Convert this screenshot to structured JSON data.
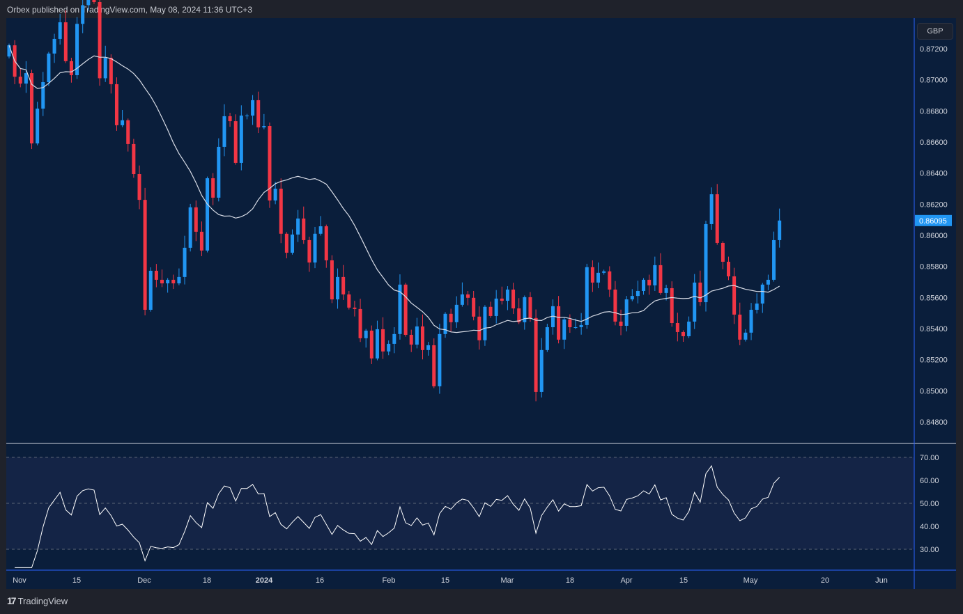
{
  "header": {
    "published": "Orbex published on TradingView.com, May 08, 2024 11:36 UTC+3"
  },
  "footer": {
    "brand": "TradingView"
  },
  "currency_button": "GBP",
  "colors": {
    "up": "#2196f3",
    "down": "#f23645",
    "ma": "#d8dce6",
    "rsi": "#ffffff",
    "background": "#0a1e3b",
    "rsi_band": "#142446"
  },
  "chart_data": [
    {
      "type": "candlestick",
      "title": "Price",
      "price_ticks": [
        "0.87200",
        "0.87000",
        "0.86800",
        "0.86600",
        "0.86400",
        "0.86200",
        "0.86000",
        "0.85800",
        "0.85600",
        "0.85400",
        "0.85200",
        "0.85000",
        "0.84800"
      ],
      "ylim": [
        0.8468,
        0.8752
      ],
      "current_price": "0.86095",
      "first_open": 0.8715,
      "close": [
        0.87222,
        0.8702,
        0.86976,
        0.87043,
        0.86591,
        0.86815,
        0.86985,
        0.87169,
        0.87263,
        0.8737,
        0.8712,
        0.8703,
        0.8736,
        0.8748,
        0.8752,
        0.875,
        0.8701,
        0.87142,
        0.86972,
        0.86708,
        0.8674,
        0.86587,
        0.86394,
        0.86228,
        0.85521,
        0.85772,
        0.85714,
        0.85691,
        0.85714,
        0.85691,
        0.85732,
        0.8592,
        0.8618,
        0.86023,
        0.85902,
        0.86367,
        0.86242,
        0.86569,
        0.86766,
        0.86734,
        0.86466,
        0.8677,
        0.8677,
        0.86869,
        0.86694,
        0.86703,
        0.86224,
        0.863,
        0.8601,
        0.85888,
        0.86005,
        0.86108,
        0.85969,
        0.85825,
        0.8601,
        0.86058,
        0.85839,
        0.85588,
        0.85732,
        0.8562,
        0.85535,
        0.85526,
        0.85338,
        0.85387,
        0.85208,
        0.85396,
        0.85253,
        0.85302,
        0.85365,
        0.85683,
        0.8536,
        0.85297,
        0.85414,
        0.85262,
        0.85293,
        0.85029,
        0.85365,
        0.85495,
        0.85441,
        0.85553,
        0.8562,
        0.85598,
        0.85477,
        0.85325,
        0.8554,
        0.85481,
        0.85593,
        0.85579,
        0.85651,
        0.8553,
        0.85441,
        0.85602,
        0.85468,
        0.84993,
        0.85262,
        0.85409,
        0.85544,
        0.85329,
        0.85459,
        0.85409,
        0.85409,
        0.85423,
        0.85795,
        0.85696,
        0.85759,
        0.85768,
        0.85651,
        0.85445,
        0.85418,
        0.85588,
        0.8561,
        0.85642,
        0.85714,
        0.85678,
        0.85808,
        0.85629,
        0.8566,
        0.85436,
        0.85378,
        0.85351,
        0.85445,
        0.85696,
        0.8557,
        0.86072,
        0.86264,
        0.85951,
        0.8583,
        0.85736,
        0.8549,
        0.85329,
        0.85374,
        0.85521,
        0.85561,
        0.85683,
        0.85714,
        0.85969,
        0.86095
      ],
      "moving_average_period": 20
    },
    {
      "type": "line",
      "title": "RSI",
      "rsi_period": 14,
      "ylim": [
        22,
        75
      ],
      "ticks": [
        "70.00",
        "60.00",
        "50.00",
        "40.00",
        "30.00"
      ],
      "band": [
        30,
        70
      ],
      "midline": 50
    }
  ],
  "x_axis": {
    "labels": [
      "Nov",
      "15",
      "Dec",
      "18",
      "2024",
      "16",
      "Feb",
      "15",
      "Mar",
      "18",
      "Apr",
      "15",
      "May",
      "20",
      "Jun"
    ]
  }
}
